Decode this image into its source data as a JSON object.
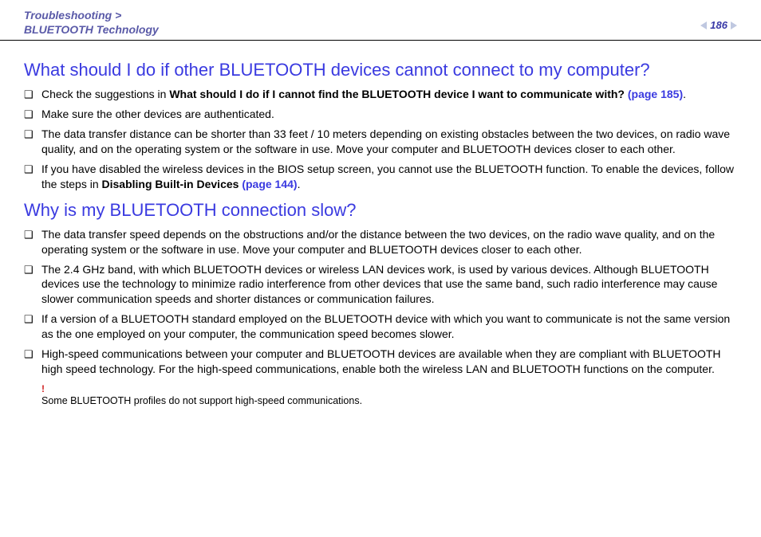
{
  "header": {
    "breadcrumb_top": "Troubleshooting >",
    "breadcrumb_bottom": "BLUETOOTH Technology",
    "page_number": "186"
  },
  "section1": {
    "heading": "What should I do if other BLUETOOTH devices cannot connect to my computer?",
    "items": [
      {
        "prefix": "Check the suggestions in ",
        "bold_lead": "What should I do if I cannot find the BLUETOOTH device I want to communicate with? ",
        "link": "(page 185)",
        "suffix": "."
      },
      {
        "text": "Make sure the other devices are authenticated."
      },
      {
        "text": "The data transfer distance can be shorter than 33 feet / 10 meters depending on existing obstacles between the two devices, on radio wave quality, and on the operating system or the software in use. Move your computer and BLUETOOTH devices closer to each other."
      },
      {
        "prefix": "If you have disabled the wireless devices in the BIOS setup screen, you cannot use the BLUETOOTH function. To enable the devices, follow the steps in ",
        "bold_lead": "Disabling Built-in Devices ",
        "link": "(page 144)",
        "suffix": "."
      }
    ]
  },
  "section2": {
    "heading": "Why is my BLUETOOTH connection slow?",
    "items": [
      {
        "text": "The data transfer speed depends on the obstructions and/or the distance between the two devices, on the radio wave quality, and on the operating system or the software in use. Move your computer and BLUETOOTH devices closer to each other."
      },
      {
        "text": "The 2.4 GHz band, with which BLUETOOTH devices or wireless LAN devices work, is used by various devices. Although BLUETOOTH devices use the technology to minimize radio interference from other devices that use the same band, such radio interference may cause slower communication speeds and shorter distances or communication failures."
      },
      {
        "text": "If a version of a BLUETOOTH standard employed on the BLUETOOTH device with which you want to communicate is not the same version as the one employed on your computer, the communication speed becomes slower."
      },
      {
        "text": "High-speed communications between your computer and BLUETOOTH devices are available when they are compliant with BLUETOOTH high speed technology. For the high-speed communications, enable both the wireless LAN and BLUETOOTH functions on the computer."
      }
    ],
    "note_mark": "!",
    "note_text": "Some BLUETOOTH profiles do not support high-speed communications."
  },
  "glyphs": {
    "bullet": "❑"
  },
  "colors": {
    "heading": "#3a3ae0",
    "breadcrumb": "#5a5aa8",
    "link": "#3a3ae0",
    "note_mark": "#d02020"
  }
}
